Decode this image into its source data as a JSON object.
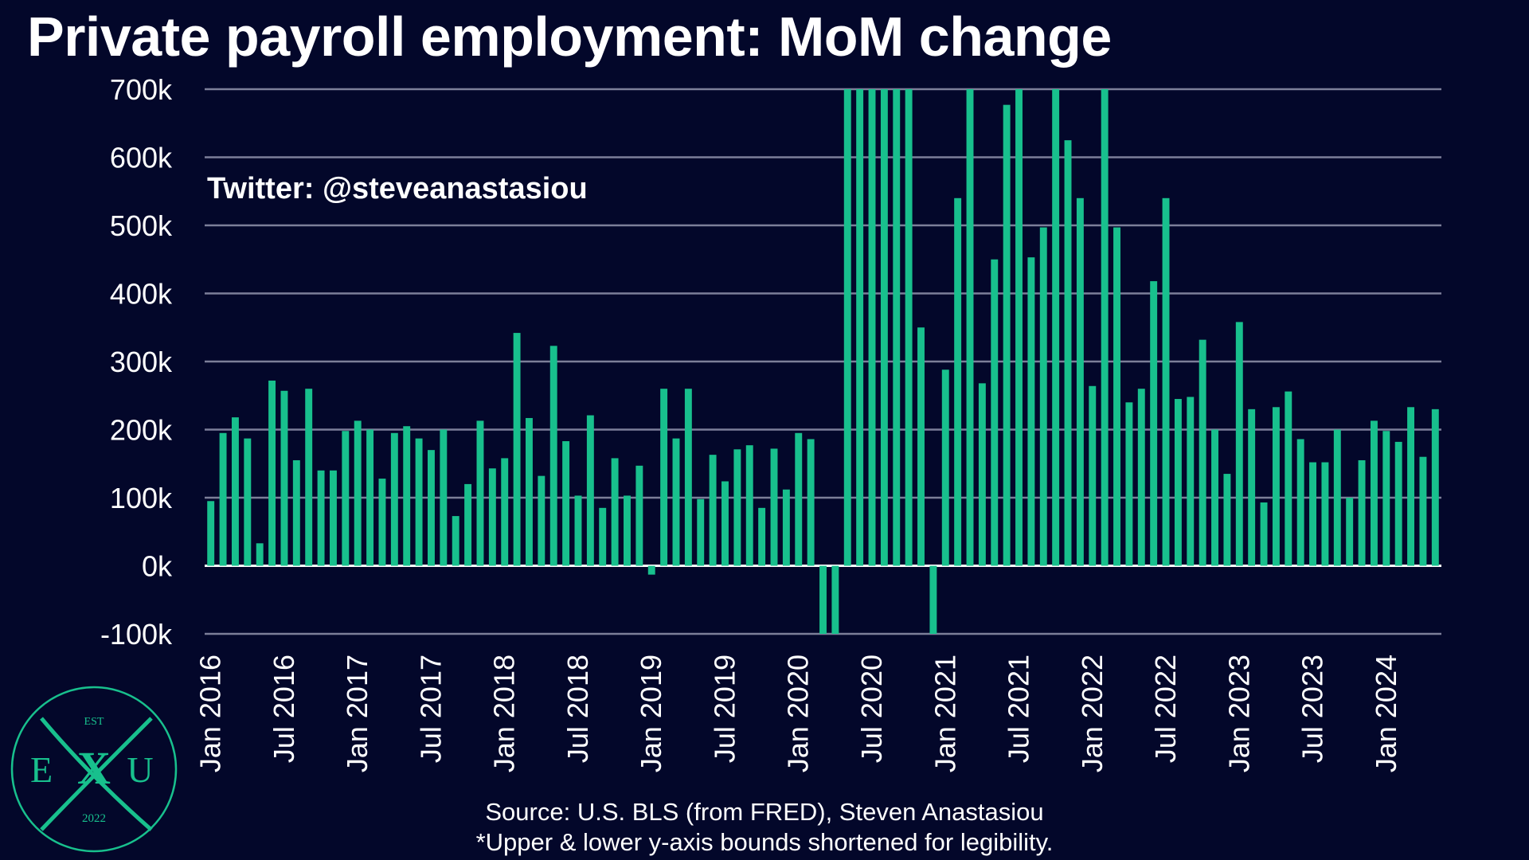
{
  "title": "Private payroll employment: MoM change",
  "watermark": "Twitter: @steveanastasiou",
  "source": "Source: U.S. BLS (from FRED), Steven Anastasiou",
  "note": "*Upper & lower y-axis bounds shortened for legibility.",
  "logo": {
    "top": "EST",
    "left": "E",
    "center": "X",
    "right": "U",
    "bottom": "2022"
  },
  "colors": {
    "background": "#03072a",
    "bar": "#18c08d",
    "grid": "#7c7f99",
    "text": "#ffffff"
  },
  "chart_data": {
    "type": "bar",
    "ylim": [
      -100,
      700
    ],
    "y_ticks": [
      "-100k",
      "0k",
      "100k",
      "200k",
      "300k",
      "400k",
      "500k",
      "600k",
      "700k"
    ],
    "y_tick_values": [
      -100,
      0,
      100,
      200,
      300,
      400,
      500,
      600,
      700
    ],
    "x_tick_labels": [
      "Jan 2016",
      "Jul 2016",
      "Jan 2017",
      "Jul 2017",
      "Jan 2018",
      "Jul 2018",
      "Jan 2019",
      "Jul 2019",
      "Jan 2020",
      "Jul 2020",
      "Jan 2021",
      "Jul 2021",
      "Jan 2022",
      "Jul 2022",
      "Jan 2023",
      "Jul 2023",
      "Jan 2024"
    ],
    "x_tick_index": [
      0,
      6,
      12,
      18,
      24,
      30,
      36,
      42,
      48,
      54,
      60,
      66,
      72,
      78,
      84,
      90,
      96
    ],
    "grid": true,
    "legend": "none",
    "values": [
      95,
      195,
      218,
      187,
      33,
      272,
      257,
      155,
      260,
      140,
      140,
      198,
      213,
      200,
      128,
      195,
      205,
      187,
      170,
      200,
      73,
      120,
      213,
      143,
      158,
      342,
      217,
      132,
      323,
      183,
      103,
      221,
      85,
      158,
      103,
      147,
      -13,
      260,
      187,
      260,
      98,
      163,
      124,
      171,
      177,
      85,
      172,
      112,
      195,
      186,
      -100,
      -100,
      700,
      700,
      700,
      700,
      700,
      700,
      350,
      -100,
      288,
      540,
      700,
      268,
      450,
      677,
      700,
      453,
      497,
      700,
      625,
      540,
      264,
      700,
      497,
      240,
      260,
      418,
      540,
      245,
      248,
      332,
      200,
      135,
      358,
      230,
      93,
      233,
      256,
      186,
      152,
      152,
      200,
      100,
      155,
      213,
      198,
      182,
      233,
      160,
      230
    ]
  }
}
